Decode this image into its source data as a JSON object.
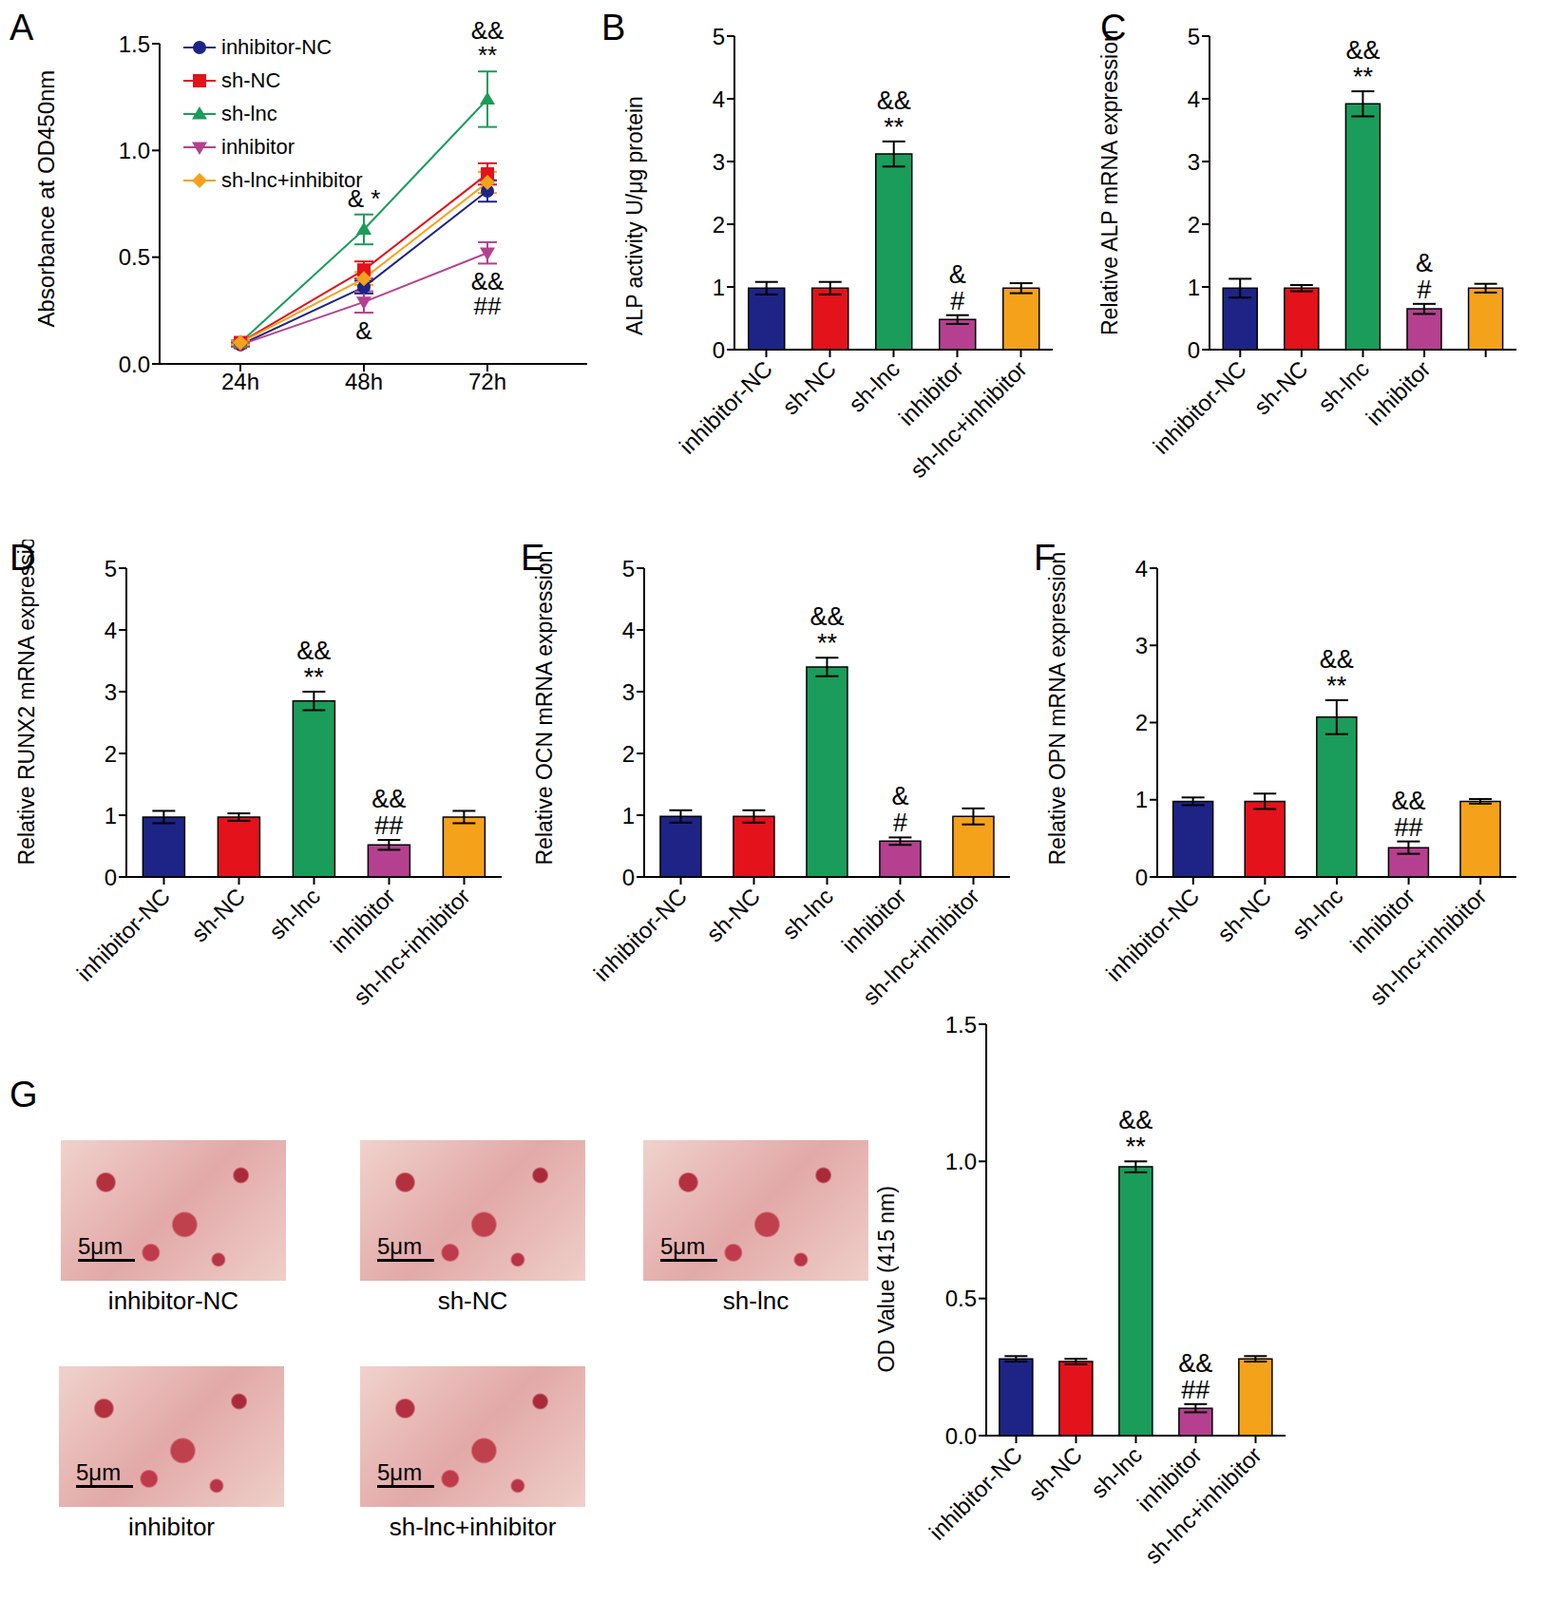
{
  "chart_data": [
    {
      "panel": "A",
      "type": "line",
      "y_label": "Absorbance at OD450nm",
      "x": [
        "24h",
        "48h",
        "72h"
      ],
      "ylim": [
        0,
        1.5
      ],
      "yticks": [
        {
          "value": 0,
          "label": "0.0"
        },
        {
          "value": 0.5,
          "label": "0.5"
        },
        {
          "value": 1,
          "label": "1.0"
        },
        {
          "value": 1.5,
          "label": "1.5"
        }
      ],
      "legend": "top-left",
      "grid": false,
      "series": [
        {
          "name": "inhibitor-NC",
          "color": "#1d2486",
          "marker": "circle",
          "values": [
            0.09,
            0.36,
            0.81
          ],
          "errors": [
            0.01,
            0.03,
            0.05
          ]
        },
        {
          "name": "sh-NC",
          "color": "#e3121b",
          "marker": "square",
          "values": [
            0.1,
            0.44,
            0.89
          ],
          "errors": [
            0.01,
            0.04,
            0.05
          ]
        },
        {
          "name": "sh-lnc",
          "color": "#1a9c5b",
          "marker": "triangle",
          "values": [
            0.1,
            0.63,
            1.24
          ],
          "errors": [
            0.01,
            0.07,
            0.13
          ]
        },
        {
          "name": "inhibitor",
          "color": "#b5408f",
          "marker": "triangle-down",
          "values": [
            0.09,
            0.29,
            0.52
          ],
          "errors": [
            0.01,
            0.05,
            0.05
          ]
        },
        {
          "name": "sh-lnc+inhibitor",
          "color": "#f5a21b",
          "marker": "diamond",
          "values": [
            0.1,
            0.4,
            0.85
          ],
          "errors": [
            0.01,
            0.03,
            0.05
          ]
        }
      ],
      "annotations": [
        {
          "series": "sh-lnc",
          "x": "48h",
          "lines": [
            "& *"
          ],
          "position": "above"
        },
        {
          "series": "sh-lnc",
          "x": "72h",
          "lines": [
            "&&",
            "**"
          ],
          "position": "above"
        },
        {
          "series": "inhibitor",
          "x": "48h",
          "lines": [
            "&"
          ],
          "position": "below"
        },
        {
          "series": "inhibitor",
          "x": "72h",
          "lines": [
            "&&",
            "##"
          ],
          "position": "below"
        }
      ]
    },
    {
      "panel": "B",
      "type": "bar",
      "y_label": "ALP activity U/μg protein",
      "categories": [
        "inhibitor-NC",
        "sh-NC",
        "sh-lnc",
        "inhibitor",
        "sh-lnc+inhibitor"
      ],
      "values": [
        0.98,
        0.98,
        3.12,
        0.48,
        0.98
      ],
      "errors": [
        0.1,
        0.1,
        0.2,
        0.07,
        0.08
      ],
      "colors": [
        "#1d2486",
        "#e3121b",
        "#1a9c5b",
        "#b5408f",
        "#f5a21b"
      ],
      "ylim": [
        0,
        5
      ],
      "yticks": [
        0,
        1,
        2,
        3,
        4,
        5
      ],
      "grid": false,
      "annotations": [
        null,
        null,
        [
          "&&",
          "**"
        ],
        [
          "&",
          "#"
        ],
        null
      ]
    },
    {
      "panel": "C",
      "type": "bar",
      "y_label": "Relative ALP mRNA expression",
      "categories": [
        "inhibitor-NC",
        "sh-NC",
        "sh-lnc",
        "inhibitor",
        null
      ],
      "values": [
        0.98,
        0.98,
        3.92,
        0.65,
        0.98
      ],
      "errors": [
        0.15,
        0.05,
        0.2,
        0.08,
        0.07
      ],
      "colors": [
        "#1d2486",
        "#e3121b",
        "#1a9c5b",
        "#b5408f",
        "#f5a21b"
      ],
      "ylim": [
        0,
        5
      ],
      "yticks": [
        0,
        1,
        2,
        3,
        4,
        5
      ],
      "grid": false,
      "annotations": [
        null,
        null,
        [
          "&&",
          "**"
        ],
        [
          "&",
          "#"
        ],
        null
      ]
    },
    {
      "panel": "D",
      "type": "bar",
      "y_label": "Relative RUNX2 mRNA expression",
      "categories": [
        "inhibitor-NC",
        "sh-NC",
        "sh-lnc",
        "inhibitor",
        "sh-lnc+inhibitor"
      ],
      "values": [
        0.97,
        0.97,
        2.85,
        0.52,
        0.97
      ],
      "errors": [
        0.1,
        0.06,
        0.15,
        0.08,
        0.1
      ],
      "colors": [
        "#1d2486",
        "#e3121b",
        "#1a9c5b",
        "#b5408f",
        "#f5a21b"
      ],
      "ylim": [
        0,
        5
      ],
      "yticks": [
        0,
        1,
        2,
        3,
        4,
        5
      ],
      "grid": false,
      "annotations": [
        null,
        null,
        [
          "&&",
          "**"
        ],
        [
          "&&",
          "##"
        ],
        null
      ]
    },
    {
      "panel": "E",
      "type": "bar",
      "y_label": "Relative OCN mRNA expression",
      "categories": [
        "inhibitor-NC",
        "sh-NC",
        "sh-lnc",
        "inhibitor",
        "sh-lnc+inhibitor"
      ],
      "values": [
        0.98,
        0.98,
        3.4,
        0.58,
        0.98
      ],
      "errors": [
        0.1,
        0.1,
        0.15,
        0.06,
        0.13
      ],
      "colors": [
        "#1d2486",
        "#e3121b",
        "#1a9c5b",
        "#b5408f",
        "#f5a21b"
      ],
      "ylim": [
        0,
        5
      ],
      "yticks": [
        0,
        1,
        2,
        3,
        4,
        5
      ],
      "grid": false,
      "annotations": [
        null,
        null,
        [
          "&&",
          "**"
        ],
        [
          "&",
          "#"
        ],
        null
      ]
    },
    {
      "panel": "F",
      "type": "bar",
      "y_label": "Relative OPN mRNA expression",
      "categories": [
        "inhibitor-NC",
        "sh-NC",
        "sh-lnc",
        "inhibitor",
        "sh-lnc+inhibitor"
      ],
      "values": [
        0.98,
        0.98,
        2.07,
        0.38,
        0.98
      ],
      "errors": [
        0.05,
        0.1,
        0.22,
        0.08,
        0.03
      ],
      "colors": [
        "#1d2486",
        "#e3121b",
        "#1a9c5b",
        "#b5408f",
        "#f5a21b"
      ],
      "ylim": [
        0,
        4
      ],
      "yticks": [
        0,
        1,
        2,
        3,
        4
      ],
      "grid": false,
      "annotations": [
        null,
        null,
        [
          "&&",
          "**"
        ],
        [
          "&&",
          "##"
        ],
        null
      ]
    },
    {
      "panel": "G",
      "type": "bar",
      "y_label": "OD Value (415 nm)",
      "categories": [
        "inhibitor-NC",
        "sh-NC",
        "sh-lnc",
        "inhibitor",
        "sh-lnc+inhibitor"
      ],
      "values": [
        0.28,
        0.27,
        0.98,
        0.1,
        0.28
      ],
      "errors": [
        0.01,
        0.01,
        0.02,
        0.015,
        0.01
      ],
      "colors": [
        "#1d2486",
        "#e3121b",
        "#1a9c5b",
        "#b5408f",
        "#f5a21b"
      ],
      "ylim": [
        0,
        1.5
      ],
      "yticks": [
        {
          "value": 0,
          "label": "0.0"
        },
        {
          "value": 0.5,
          "label": "0.5"
        },
        {
          "value": 1,
          "label": "1.0"
        },
        {
          "value": 1.5,
          "label": "1.5"
        }
      ],
      "grid": false,
      "annotations": [
        null,
        null,
        [
          "&&",
          "**"
        ],
        [
          "&&",
          "##"
        ],
        null
      ],
      "images": [
        {
          "caption": "inhibitor-NC",
          "scale_bar": "5μm"
        },
        {
          "caption": "sh-NC",
          "scale_bar": "5μm"
        },
        {
          "caption": "sh-lnc",
          "scale_bar": "5μm"
        },
        {
          "caption": "inhibitor",
          "scale_bar": "5μm"
        },
        {
          "caption": "sh-lnc+inhibitor",
          "scale_bar": "5μm"
        }
      ]
    }
  ]
}
